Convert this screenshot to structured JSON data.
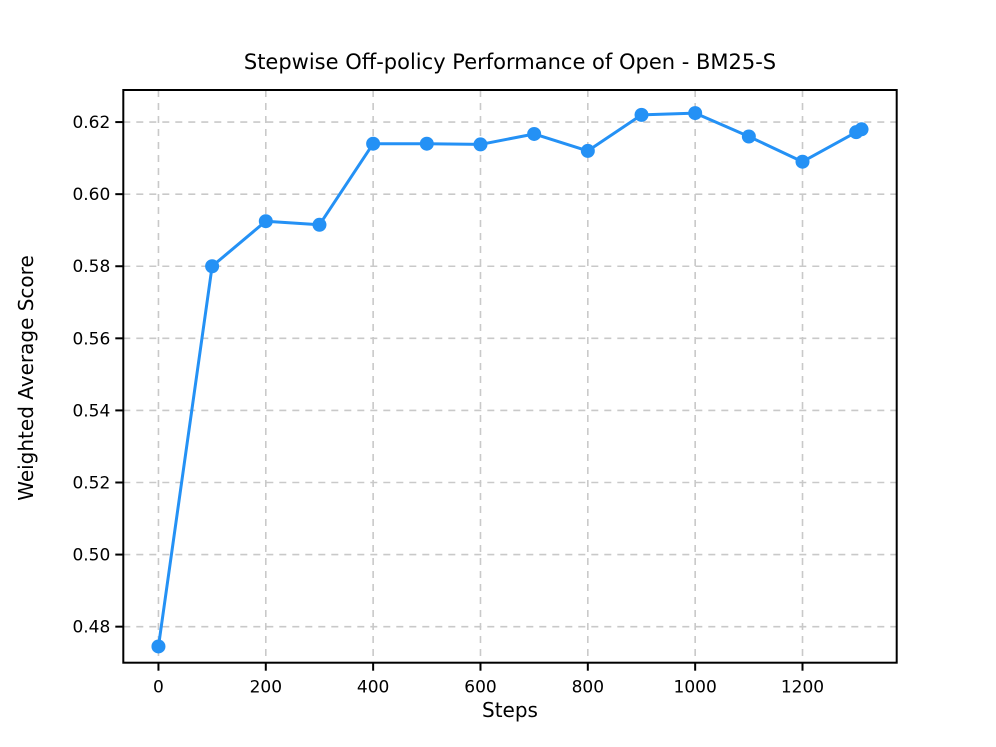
{
  "chart_data": {
    "type": "line",
    "title": "Stepwise Off-policy Performance of Open - BM25-S",
    "xlabel": "Steps",
    "ylabel": "Weighted Average Score",
    "x": [
      0,
      100,
      200,
      300,
      400,
      500,
      600,
      700,
      800,
      900,
      1000,
      1100,
      1200,
      1300,
      1310
    ],
    "y": [
      0.4745,
      0.58,
      0.5925,
      0.5915,
      0.614,
      0.614,
      0.6138,
      0.6167,
      0.612,
      0.622,
      0.6225,
      0.616,
      0.609,
      0.6172,
      0.618
    ],
    "xlim": [
      -65.5,
      1375.5
    ],
    "ylim": [
      0.47,
      0.6289
    ],
    "xticks": [
      0,
      200,
      400,
      600,
      800,
      1000,
      1200
    ],
    "yticks": [
      0.48,
      0.5,
      0.52,
      0.54,
      0.56,
      0.58,
      0.6,
      0.62
    ],
    "ytick_decimals": 2,
    "grid": true,
    "legend": null,
    "line_color": "#2491f5",
    "marker": "o",
    "marker_radius": 7,
    "line_width": 3,
    "grid_color": "#c9c9c9",
    "spine_color": "#000000",
    "background_color": "#ffffff"
  }
}
